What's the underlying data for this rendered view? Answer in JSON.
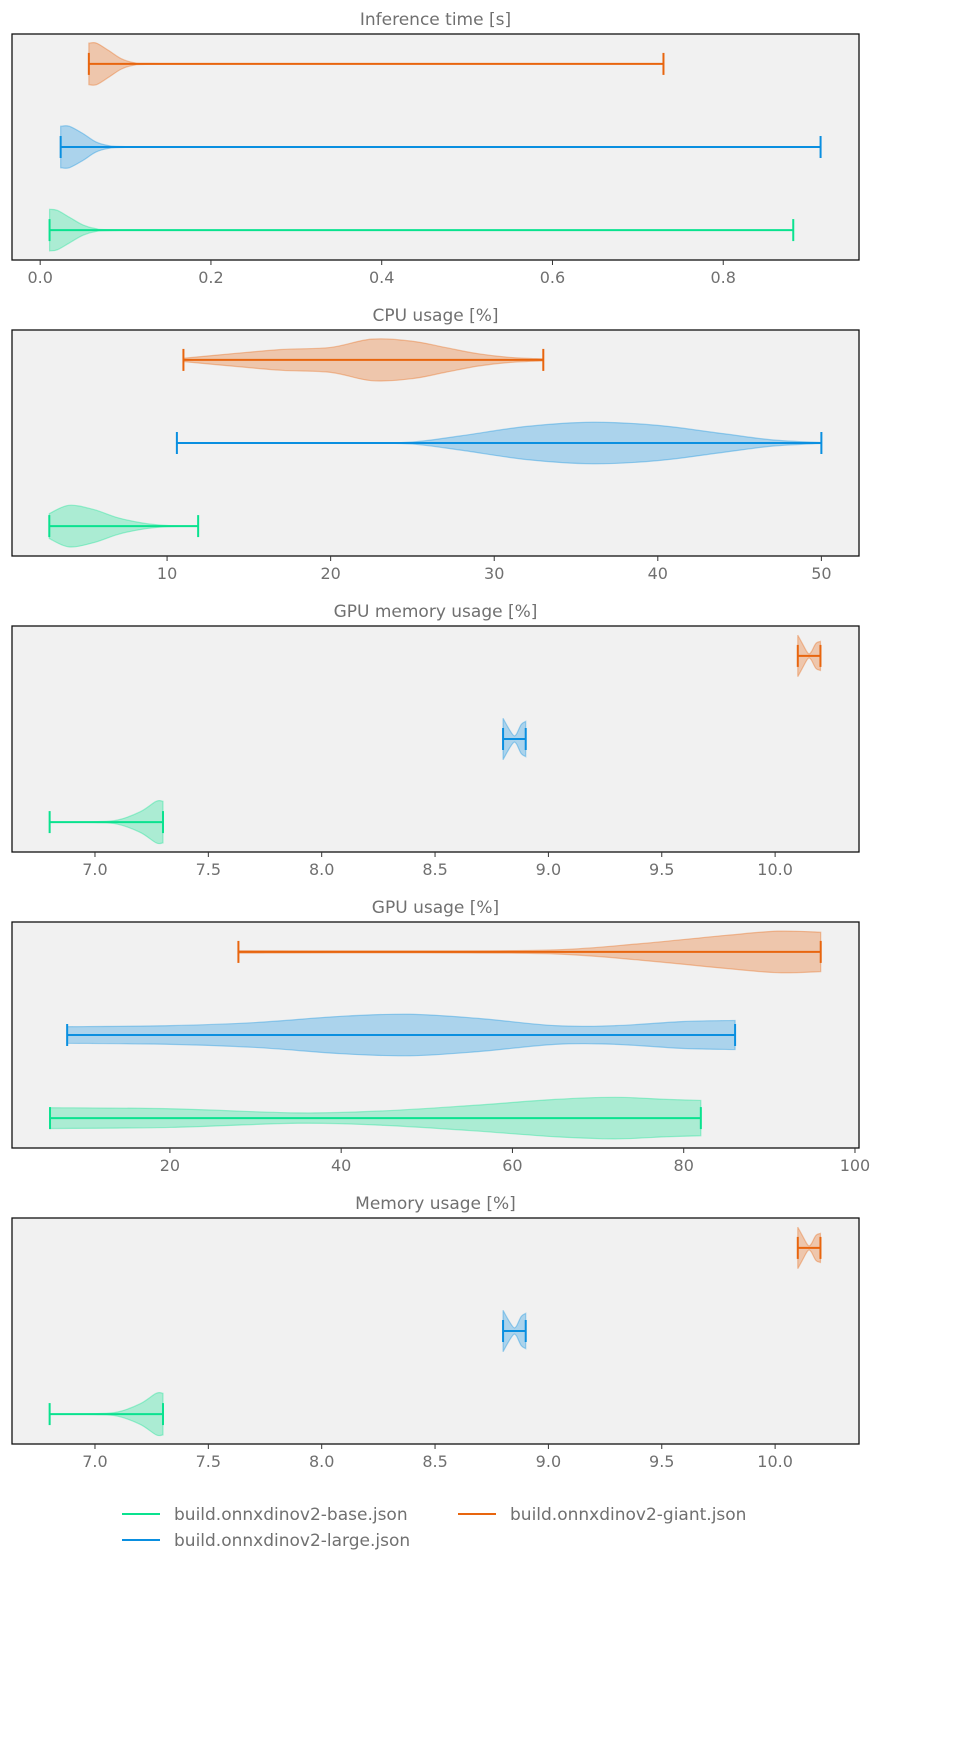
{
  "legend": {
    "placement": "bottom",
    "items": [
      {
        "label": "build.onnxdinov2-base.json",
        "color": "#0ae28f"
      },
      {
        "label": "build.onnxdinov2-large.json",
        "color": "#0a8fe0"
      },
      {
        "label": "build.onnxdinov2-giant.json",
        "color": "#e8650e"
      }
    ]
  },
  "chart_data": [
    {
      "type": "violin",
      "orientation": "horizontal",
      "title": "Inference time [s]",
      "xlim": [
        -0.033,
        0.959
      ],
      "ticks": [
        0.0,
        0.2,
        0.4,
        0.6,
        0.8
      ],
      "tick_labels": [
        "0.0",
        "0.2",
        "0.4",
        "0.6",
        "0.8"
      ],
      "series": [
        {
          "name": "build.onnxdinov2-base.json",
          "min": 0.011,
          "max": 0.882,
          "density": [
            [
              0.011,
              1
            ],
            [
              0.02,
              0.95
            ],
            [
              0.035,
              0.6
            ],
            [
              0.05,
              0.25
            ],
            [
              0.065,
              0.07
            ],
            [
              0.085,
              0.02
            ],
            [
              0.2,
              0
            ],
            [
              0.882,
              0
            ]
          ]
        },
        {
          "name": "build.onnxdinov2-large.json",
          "min": 0.024,
          "max": 0.914,
          "density": [
            [
              0.024,
              1
            ],
            [
              0.034,
              1
            ],
            [
              0.05,
              0.65
            ],
            [
              0.065,
              0.25
            ],
            [
              0.08,
              0.07
            ],
            [
              0.1,
              0.02
            ],
            [
              0.2,
              0
            ],
            [
              0.914,
              0
            ]
          ]
        },
        {
          "name": "build.onnxdinov2-giant.json",
          "min": 0.057,
          "max": 0.73,
          "density": [
            [
              0.057,
              1
            ],
            [
              0.066,
              1
            ],
            [
              0.08,
              0.65
            ],
            [
              0.095,
              0.25
            ],
            [
              0.11,
              0.06
            ],
            [
              0.13,
              0.02
            ],
            [
              0.25,
              0
            ],
            [
              0.73,
              0
            ]
          ]
        }
      ]
    },
    {
      "type": "violin",
      "orientation": "horizontal",
      "title": "CPU usage [%]",
      "xlim": [
        0.52,
        52.3
      ],
      "ticks": [
        10,
        20,
        30,
        40,
        50
      ],
      "tick_labels": [
        "10",
        "20",
        "30",
        "40",
        "50"
      ],
      "series": [
        {
          "name": "build.onnxdinov2-base.json",
          "min": 2.8,
          "max": 11.9,
          "density": [
            [
              2.8,
              0.6
            ],
            [
              4,
              1
            ],
            [
              5.5,
              0.8
            ],
            [
              7,
              0.4
            ],
            [
              8.5,
              0.15
            ],
            [
              10,
              0.03
            ],
            [
              11.9,
              0.01
            ]
          ]
        },
        {
          "name": "build.onnxdinov2-large.json",
          "min": 10.6,
          "max": 50,
          "density": [
            [
              10.6,
              0
            ],
            [
              22,
              0.01
            ],
            [
              25,
              0.05
            ],
            [
              28,
              0.35
            ],
            [
              32,
              0.8
            ],
            [
              36,
              1
            ],
            [
              40,
              0.85
            ],
            [
              44,
              0.45
            ],
            [
              47,
              0.15
            ],
            [
              50,
              0.02
            ]
          ]
        },
        {
          "name": "build.onnxdinov2-giant.json",
          "min": 11.0,
          "max": 33.0,
          "density": [
            [
              11,
              0.08
            ],
            [
              14,
              0.3
            ],
            [
              17,
              0.5
            ],
            [
              20,
              0.6
            ],
            [
              22.5,
              1
            ],
            [
              25,
              0.9
            ],
            [
              27,
              0.6
            ],
            [
              29,
              0.3
            ],
            [
              31,
              0.12
            ],
            [
              33,
              0.05
            ]
          ]
        }
      ]
    },
    {
      "type": "violin",
      "orientation": "horizontal",
      "title": "GPU memory usage [%]",
      "xlim": [
        6.634,
        10.37
      ],
      "ticks": [
        7.0,
        7.5,
        8.0,
        8.5,
        9.0,
        9.5,
        10.0
      ],
      "tick_labels": [
        "7.0",
        "7.5",
        "8.0",
        "8.5",
        "9.0",
        "9.5",
        "10.0"
      ],
      "series": [
        {
          "name": "build.onnxdinov2-base.json",
          "min": 6.8,
          "max": 7.3,
          "density": [
            [
              6.8,
              0
            ],
            [
              7.0,
              0.02
            ],
            [
              7.1,
              0.1
            ],
            [
              7.2,
              0.5
            ],
            [
              7.27,
              1
            ],
            [
              7.3,
              1
            ]
          ]
        },
        {
          "name": "build.onnxdinov2-large.json",
          "min": 8.8,
          "max": 8.9,
          "density": [
            [
              8.8,
              1
            ],
            [
              8.82,
              0.6
            ],
            [
              8.84,
              0.25
            ],
            [
              8.85,
              0.15
            ],
            [
              8.86,
              0.25
            ],
            [
              8.88,
              0.7
            ],
            [
              8.9,
              0.85
            ]
          ]
        },
        {
          "name": "build.onnxdinov2-giant.json",
          "min": 10.1,
          "max": 10.2,
          "density": [
            [
              10.1,
              1
            ],
            [
              10.12,
              0.6
            ],
            [
              10.14,
              0.2
            ],
            [
              10.15,
              0.1
            ],
            [
              10.16,
              0.2
            ],
            [
              10.18,
              0.6
            ],
            [
              10.2,
              0.7
            ]
          ]
        }
      ]
    },
    {
      "type": "violin",
      "orientation": "horizontal",
      "title": "GPU usage [%]",
      "xlim": [
        1.56,
        100.47
      ],
      "ticks": [
        20,
        40,
        60,
        80,
        100
      ],
      "tick_labels": [
        "20",
        "40",
        "60",
        "80",
        "100"
      ],
      "series": [
        {
          "name": "build.onnxdinov2-base.json",
          "min": 6,
          "max": 82,
          "density": [
            [
              6,
              0.5
            ],
            [
              20,
              0.45
            ],
            [
              35,
              0.25
            ],
            [
              45,
              0.35
            ],
            [
              55,
              0.6
            ],
            [
              65,
              0.9
            ],
            [
              72,
              1
            ],
            [
              78,
              0.9
            ],
            [
              82,
              0.85
            ]
          ]
        },
        {
          "name": "build.onnxdinov2-large.json",
          "min": 8,
          "max": 86,
          "density": [
            [
              8,
              0.4
            ],
            [
              20,
              0.45
            ],
            [
              30,
              0.6
            ],
            [
              40,
              0.9
            ],
            [
              48,
              1
            ],
            [
              56,
              0.8
            ],
            [
              65,
              0.45
            ],
            [
              72,
              0.45
            ],
            [
              80,
              0.65
            ],
            [
              86,
              0.7
            ]
          ]
        },
        {
          "name": "build.onnxdinov2-giant.json",
          "min": 28,
          "max": 96,
          "density": [
            [
              28,
              0.06
            ],
            [
              50,
              0.05
            ],
            [
              65,
              0.1
            ],
            [
              75,
              0.4
            ],
            [
              85,
              0.8
            ],
            [
              91,
              1
            ],
            [
              96,
              0.95
            ]
          ]
        }
      ]
    },
    {
      "type": "violin",
      "orientation": "horizontal",
      "title": "Memory usage [%]",
      "xlim": [
        6.634,
        10.37
      ],
      "ticks": [
        7.0,
        7.5,
        8.0,
        8.5,
        9.0,
        9.5,
        10.0
      ],
      "tick_labels": [
        "7.0",
        "7.5",
        "8.0",
        "8.5",
        "9.0",
        "9.5",
        "10.0"
      ],
      "series": [
        {
          "name": "build.onnxdinov2-base.json",
          "min": 6.8,
          "max": 7.3,
          "density": [
            [
              6.8,
              0
            ],
            [
              7.0,
              0.02
            ],
            [
              7.1,
              0.1
            ],
            [
              7.2,
              0.5
            ],
            [
              7.27,
              1
            ],
            [
              7.3,
              1
            ]
          ]
        },
        {
          "name": "build.onnxdinov2-large.json",
          "min": 8.8,
          "max": 8.9,
          "density": [
            [
              8.8,
              1
            ],
            [
              8.82,
              0.6
            ],
            [
              8.84,
              0.25
            ],
            [
              8.85,
              0.15
            ],
            [
              8.86,
              0.25
            ],
            [
              8.88,
              0.7
            ],
            [
              8.9,
              0.85
            ]
          ]
        },
        {
          "name": "build.onnxdinov2-giant.json",
          "min": 10.1,
          "max": 10.2,
          "density": [
            [
              10.1,
              1
            ],
            [
              10.12,
              0.6
            ],
            [
              10.14,
              0.2
            ],
            [
              10.15,
              0.1
            ],
            [
              10.16,
              0.2
            ],
            [
              10.18,
              0.6
            ],
            [
              10.2,
              0.7
            ]
          ]
        }
      ]
    }
  ]
}
